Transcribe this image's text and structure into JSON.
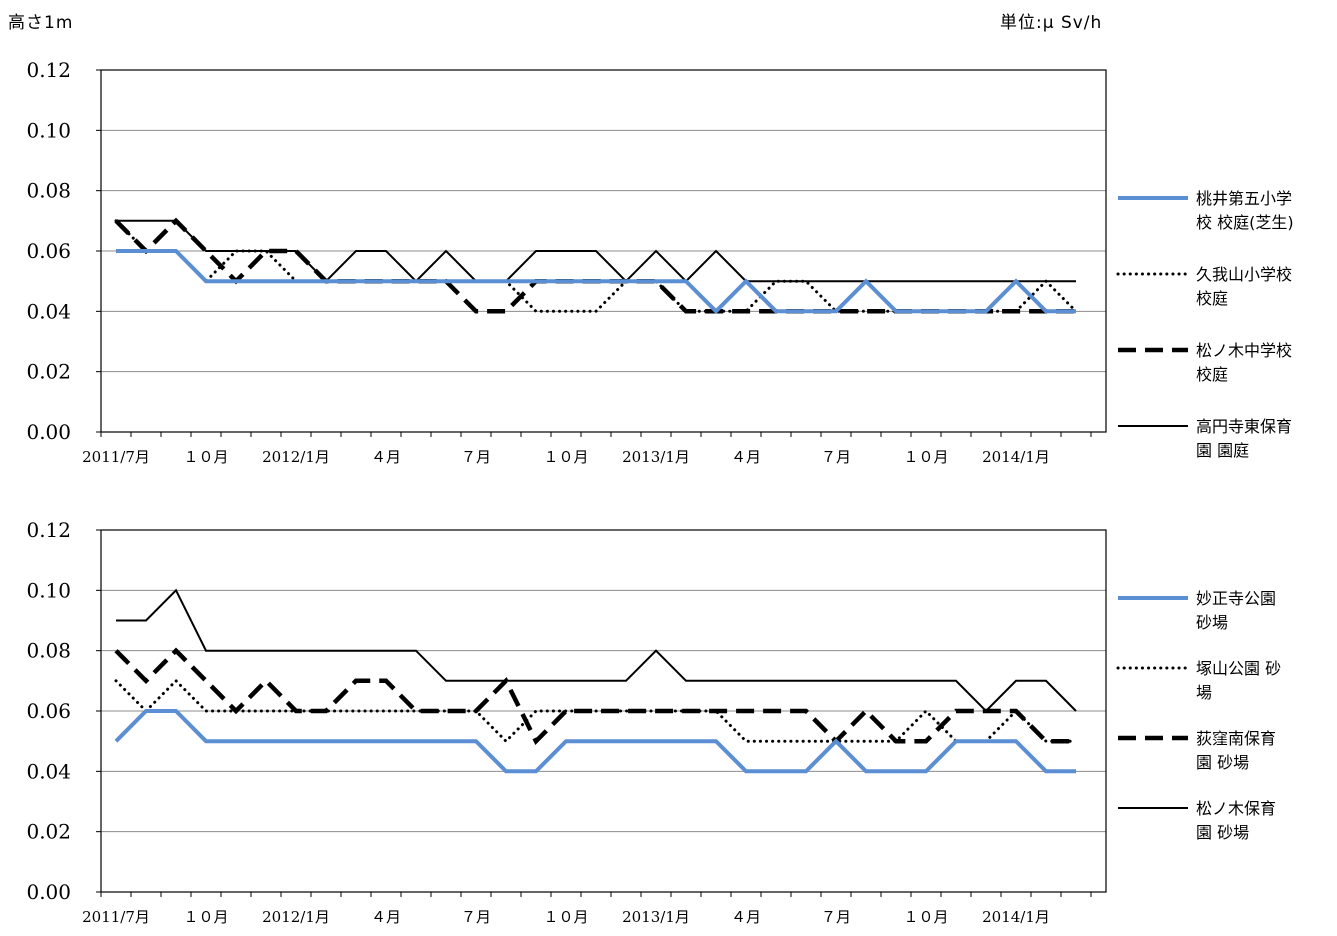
{
  "header": {
    "left": "高さ1m",
    "right": "単位:μ Sv/h"
  },
  "x_labels": [
    "2011/7月",
    "１０月",
    "2012/1月",
    "４月",
    "７月",
    "１０月",
    "2013/1月",
    "４月",
    "７月",
    "１０月",
    "2014/1月"
  ],
  "x_label_months": [
    0,
    3,
    6,
    9,
    12,
    15,
    18,
    21,
    24,
    27,
    30
  ],
  "colors": {
    "blue": "#5B8ED2",
    "black": "#000000",
    "grid": "#8c8c8c"
  },
  "chart_data": [
    {
      "type": "line",
      "ylim": [
        0,
        0.12
      ],
      "yticks": [
        "0.00",
        "0.02",
        "0.04",
        "0.06",
        "0.08",
        "0.10",
        "0.12"
      ],
      "grid": true,
      "legend": "right",
      "x": [
        0,
        1,
        2,
        3,
        4,
        5,
        6,
        7,
        8,
        9,
        10,
        11,
        12,
        13,
        14,
        15,
        16,
        17,
        18,
        19,
        20,
        21,
        22,
        23,
        24,
        25,
        26,
        27,
        28,
        29,
        30,
        31,
        32
      ],
      "series": [
        {
          "name": "桃井第五小学校 校庭(芝生)",
          "legend_lines": [
            "桃井第五小学",
            "校 校庭(芝生)"
          ],
          "style": "blue",
          "values": [
            0.06,
            0.06,
            0.06,
            0.05,
            0.05,
            0.05,
            0.05,
            0.05,
            0.05,
            0.05,
            0.05,
            0.05,
            0.05,
            0.05,
            0.05,
            0.05,
            0.05,
            0.05,
            0.05,
            0.05,
            0.04,
            0.05,
            0.04,
            0.04,
            0.04,
            0.05,
            0.04,
            0.04,
            0.04,
            0.04,
            0.05,
            0.04,
            0.04
          ]
        },
        {
          "name": "久我山小学校 校庭",
          "legend_lines": [
            "久我山小学校",
            "校庭"
          ],
          "style": "dotted",
          "values": [
            0.07,
            0.06,
            0.06,
            0.05,
            0.06,
            0.06,
            0.05,
            0.05,
            0.05,
            0.05,
            0.05,
            0.05,
            0.05,
            0.05,
            0.04,
            0.04,
            0.04,
            0.05,
            0.05,
            0.04,
            0.04,
            0.04,
            0.05,
            0.05,
            0.04,
            0.04,
            0.04,
            0.04,
            0.04,
            0.04,
            0.04,
            0.05,
            0.04
          ]
        },
        {
          "name": "松ノ木中学校 校庭",
          "legend_lines": [
            "松ノ木中学校",
            "校庭"
          ],
          "style": "dashed",
          "values": [
            0.07,
            0.06,
            0.07,
            0.06,
            0.05,
            0.06,
            0.06,
            0.05,
            0.05,
            0.05,
            0.05,
            0.05,
            0.04,
            0.04,
            0.05,
            0.05,
            0.05,
            0.05,
            0.05,
            0.04,
            0.04,
            0.04,
            0.04,
            0.04,
            0.04,
            0.04,
            0.04,
            0.04,
            0.04,
            0.04,
            0.04,
            0.04,
            0.04
          ]
        },
        {
          "name": "高円寺東保育園 園庭",
          "legend_lines": [
            "高円寺東保育",
            "園 園庭"
          ],
          "style": "solid",
          "values": [
            0.07,
            0.07,
            0.07,
            0.06,
            0.06,
            0.06,
            0.06,
            0.05,
            0.06,
            0.06,
            0.05,
            0.06,
            0.05,
            0.05,
            0.06,
            0.06,
            0.06,
            0.05,
            0.06,
            0.05,
            0.06,
            0.05,
            0.05,
            0.05,
            0.05,
            0.05,
            0.05,
            0.05,
            0.05,
            0.05,
            0.05,
            0.05,
            0.05
          ]
        }
      ]
    },
    {
      "type": "line",
      "ylim": [
        0,
        0.12
      ],
      "yticks": [
        "0.00",
        "0.02",
        "0.04",
        "0.06",
        "0.08",
        "0.10",
        "0.12"
      ],
      "grid": true,
      "legend": "right",
      "x": [
        0,
        1,
        2,
        3,
        4,
        5,
        6,
        7,
        8,
        9,
        10,
        11,
        12,
        13,
        14,
        15,
        16,
        17,
        18,
        19,
        20,
        21,
        22,
        23,
        24,
        25,
        26,
        27,
        28,
        29,
        30,
        31,
        32
      ],
      "series": [
        {
          "name": "妙正寺公園 砂場",
          "legend_lines": [
            "妙正寺公園",
            "砂場"
          ],
          "style": "blue",
          "values": [
            0.05,
            0.06,
            0.06,
            0.05,
            0.05,
            0.05,
            0.05,
            0.05,
            0.05,
            0.05,
            0.05,
            0.05,
            0.05,
            0.04,
            0.04,
            0.05,
            0.05,
            0.05,
            0.05,
            0.05,
            0.05,
            0.04,
            0.04,
            0.04,
            0.05,
            0.04,
            0.04,
            0.04,
            0.05,
            0.05,
            0.05,
            0.04,
            0.04
          ]
        },
        {
          "name": "塚山公園 砂場",
          "legend_lines": [
            "塚山公園 砂",
            "場"
          ],
          "style": "dotted",
          "values": [
            0.07,
            0.06,
            0.07,
            0.06,
            0.06,
            0.06,
            0.06,
            0.06,
            0.06,
            0.06,
            0.06,
            0.06,
            0.06,
            0.05,
            0.06,
            0.06,
            0.06,
            0.06,
            0.06,
            0.06,
            0.06,
            0.05,
            0.05,
            0.05,
            0.05,
            0.05,
            0.05,
            0.06,
            0.05,
            0.05,
            0.06,
            0.05,
            0.05
          ]
        },
        {
          "name": "荻窪南保育園 砂場",
          "legend_lines": [
            "荻窪南保育",
            "園 砂場"
          ],
          "style": "dashed",
          "values": [
            0.08,
            0.07,
            0.08,
            0.07,
            0.06,
            0.07,
            0.06,
            0.06,
            0.07,
            0.07,
            0.06,
            0.06,
            0.06,
            0.07,
            0.05,
            0.06,
            0.06,
            0.06,
            0.06,
            0.06,
            0.06,
            0.06,
            0.06,
            0.06,
            0.05,
            0.06,
            0.05,
            0.05,
            0.06,
            0.06,
            0.06,
            0.05,
            0.05
          ]
        },
        {
          "name": "松ノ木保育園 砂場",
          "legend_lines": [
            "松ノ木保育",
            "園 砂場"
          ],
          "style": "solid",
          "values": [
            0.09,
            0.09,
            0.1,
            0.08,
            0.08,
            0.08,
            0.08,
            0.08,
            0.08,
            0.08,
            0.08,
            0.07,
            0.07,
            0.07,
            0.07,
            0.07,
            0.07,
            0.07,
            0.08,
            0.07,
            0.07,
            0.07,
            0.07,
            0.07,
            0.07,
            0.07,
            0.07,
            0.07,
            0.07,
            0.06,
            0.07,
            0.07,
            0.06
          ]
        }
      ]
    }
  ]
}
